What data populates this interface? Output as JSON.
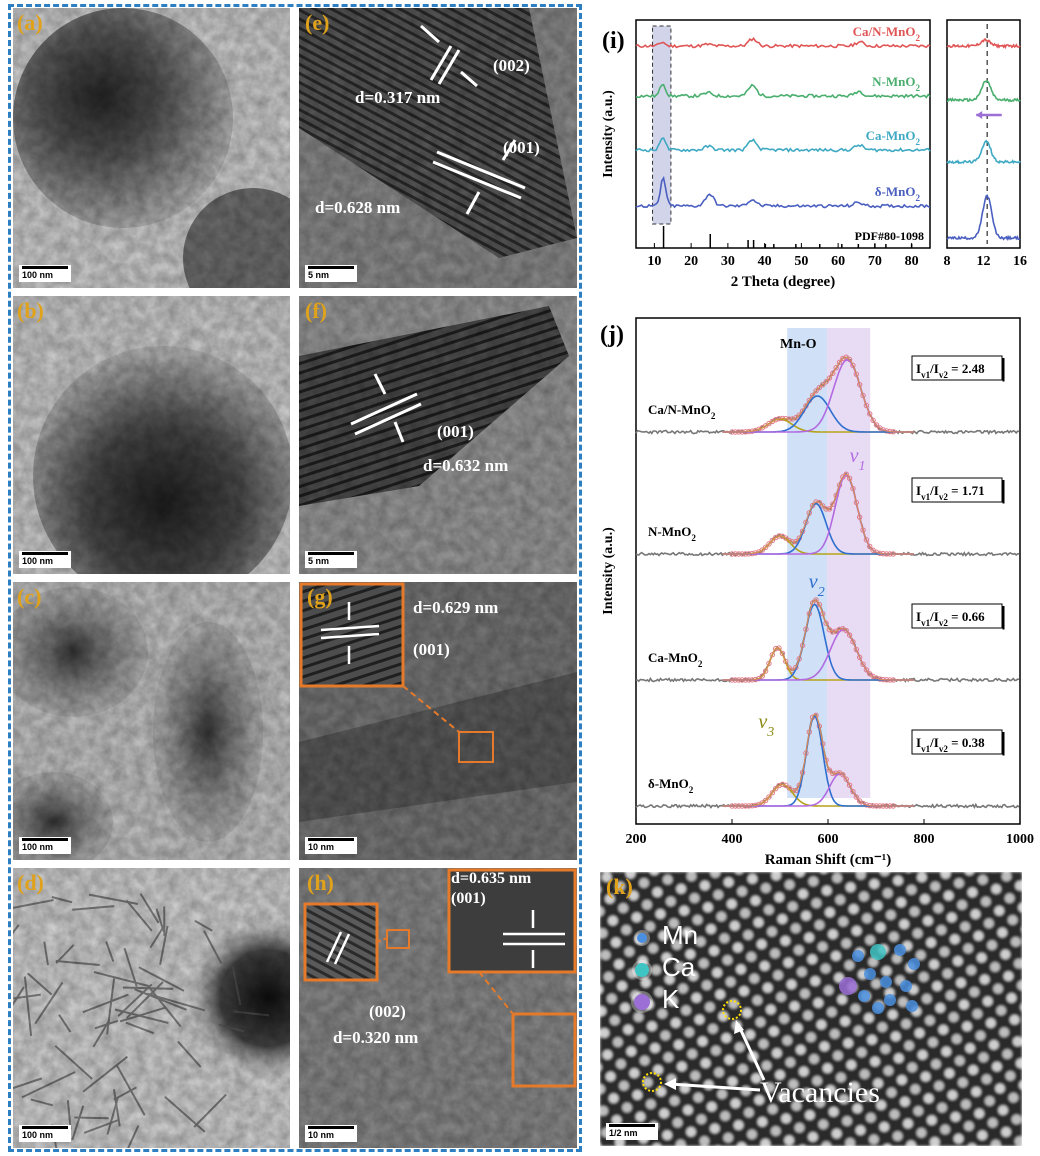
{
  "tem_panels": {
    "a": {
      "label": "(a)",
      "scale": "100 nm"
    },
    "b": {
      "label": "(b)",
      "scale": "100 nm"
    },
    "c": {
      "label": "(c)",
      "scale": "100 nm"
    },
    "d": {
      "label": "(d)",
      "scale": "100 nm"
    },
    "e": {
      "label": "(e)",
      "scale": "5 nm",
      "ann_002": "(002)",
      "d1": "d=0.317 nm",
      "ann_001": "(001)",
      "d2": "d=0.628 nm"
    },
    "f": {
      "label": "(f)",
      "scale": "5 nm",
      "ann_001": "(001)",
      "d": "d=0.632 nm"
    },
    "g": {
      "label": "(g)",
      "scale": "10 nm",
      "d": "d=0.629 nm",
      "ann_001": "(001)"
    },
    "h": {
      "label": "(h)",
      "scale": "10 nm",
      "d1": "d=0.635 nm",
      "ann_001": "(001)",
      "ann_002": "(002)",
      "d2": "d=0.320 nm"
    }
  },
  "panel_k": {
    "label": "(k)",
    "legend": [
      "Mn",
      "Ca",
      "K"
    ],
    "vacancies": "Vacancies",
    "scale": "1/2 nm",
    "colors": {
      "Mn": "#4a8fe0",
      "Ca": "#3fc4c4",
      "K": "#9b6fd6",
      "vacancy": "#ffe000"
    }
  },
  "chart_data": [
    {
      "id": "i",
      "label": "(i)",
      "type": "line",
      "xlabel": "2 Theta (degree)",
      "ylabel": "Intensity (a.u.)",
      "xlim": [
        5,
        85
      ],
      "xticks": [
        10,
        20,
        30,
        40,
        50,
        60,
        70,
        80
      ],
      "reference": "PDF#80-1098",
      "reference_peaks": [
        12.5,
        25.2,
        35.5,
        37.0,
        40.2,
        42.5,
        48.5,
        55.0,
        61.0,
        65.5,
        70.0,
        73.0,
        80.0
      ],
      "series": [
        {
          "name": "Ca/N-MnO2",
          "color": "#e05555",
          "peaks": [
            [
              12.2,
              0.5
            ],
            [
              24.5,
              0.2
            ],
            [
              36.8,
              0.9
            ],
            [
              65.8,
              0.5
            ]
          ]
        },
        {
          "name": "N-MnO2",
          "color": "#4aae6e",
          "peaks": [
            [
              12.3,
              1.6
            ],
            [
              24.6,
              0.4
            ],
            [
              36.7,
              1.3
            ],
            [
              65.6,
              0.6
            ]
          ]
        },
        {
          "name": "Ca-MnO2",
          "color": "#3fa9c3",
          "peaks": [
            [
              12.3,
              1.7
            ],
            [
              24.7,
              0.45
            ],
            [
              36.7,
              1.2
            ],
            [
              65.7,
              0.6
            ]
          ]
        },
        {
          "name": "δ-MnO2",
          "color": "#4a5fbf",
          "peaks": [
            [
              12.4,
              3.5
            ],
            [
              25.0,
              1.5
            ],
            [
              36.6,
              0.8
            ],
            [
              65.5,
              0.45
            ]
          ]
        }
      ],
      "inset": {
        "xlim": [
          8,
          16
        ],
        "xticks": [
          8,
          12,
          16
        ],
        "dashed_x": 12.4
      }
    },
    {
      "id": "j",
      "label": "(j)",
      "type": "line",
      "xlabel": "Raman Shift (cm⁻¹)",
      "ylabel": "Intensity (a.u.)",
      "xlim": [
        200,
        1000
      ],
      "xticks": [
        200,
        400,
        600,
        800,
        1000
      ],
      "bands": [
        {
          "from": 515,
          "to": 598,
          "color": "#cfe0f7"
        },
        {
          "from": 598,
          "to": 688,
          "color": "#e8dcf5"
        }
      ],
      "mode_labels": {
        "mn_o": "Mn-O",
        "v1": "v",
        "v1_sub": "1",
        "v2": "v",
        "v2_sub": "2",
        "v3": "v",
        "v3_sub": "3"
      },
      "ratio_label": "I",
      "series": [
        {
          "name": "Ca/N-MnO2",
          "ratio": "2.48",
          "components": [
            [
              500,
              35,
              0.18
            ],
            [
              578,
              38,
              0.5
            ],
            [
              640,
              40,
              1.0
            ]
          ]
        },
        {
          "name": "N-MnO2",
          "ratio": "1.71",
          "components": [
            [
              500,
              30,
              0.25
            ],
            [
              575,
              30,
              0.7
            ],
            [
              638,
              32,
              1.1
            ]
          ]
        },
        {
          "name": "Ca-MnO2",
          "ratio": "0.66",
          "components": [
            [
              495,
              22,
              0.45
            ],
            [
              572,
              28,
              1.05
            ],
            [
              632,
              38,
              0.7
            ]
          ]
        },
        {
          "name": "δ-MnO2",
          "ratio": "0.38",
          "components": [
            [
              505,
              30,
              0.3
            ],
            [
              572,
              24,
              1.25
            ],
            [
              625,
              30,
              0.45
            ]
          ]
        }
      ]
    }
  ]
}
